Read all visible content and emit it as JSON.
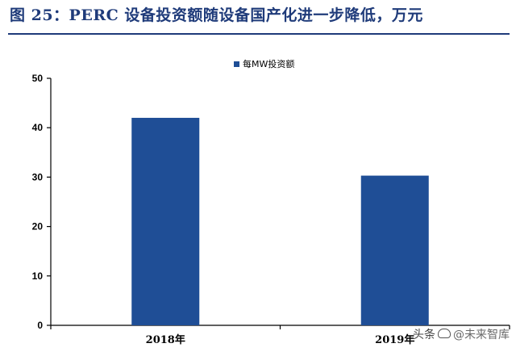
{
  "title": "图 25：PERC 设备投资额随设备国产化进一步降低，万元",
  "watermark": {
    "prefix": "头条",
    "handle": "@未来智库",
    "icon": "chat-bubble-icon"
  },
  "colors": {
    "title": "#1f3b7a",
    "bar": "#1f4e96",
    "axis": "#000000"
  },
  "chart_data": {
    "type": "bar",
    "categories": [
      "2018年",
      "2019年"
    ],
    "series": [
      {
        "name": "每MW投资额",
        "values": [
          42,
          30.3
        ],
        "color": "#1f4e96"
      }
    ],
    "ylim": [
      0,
      50
    ],
    "yticks": [
      0,
      10,
      20,
      30,
      40,
      50
    ],
    "xlabel": "",
    "ylabel": "",
    "legend": "top-center",
    "grid": false
  }
}
